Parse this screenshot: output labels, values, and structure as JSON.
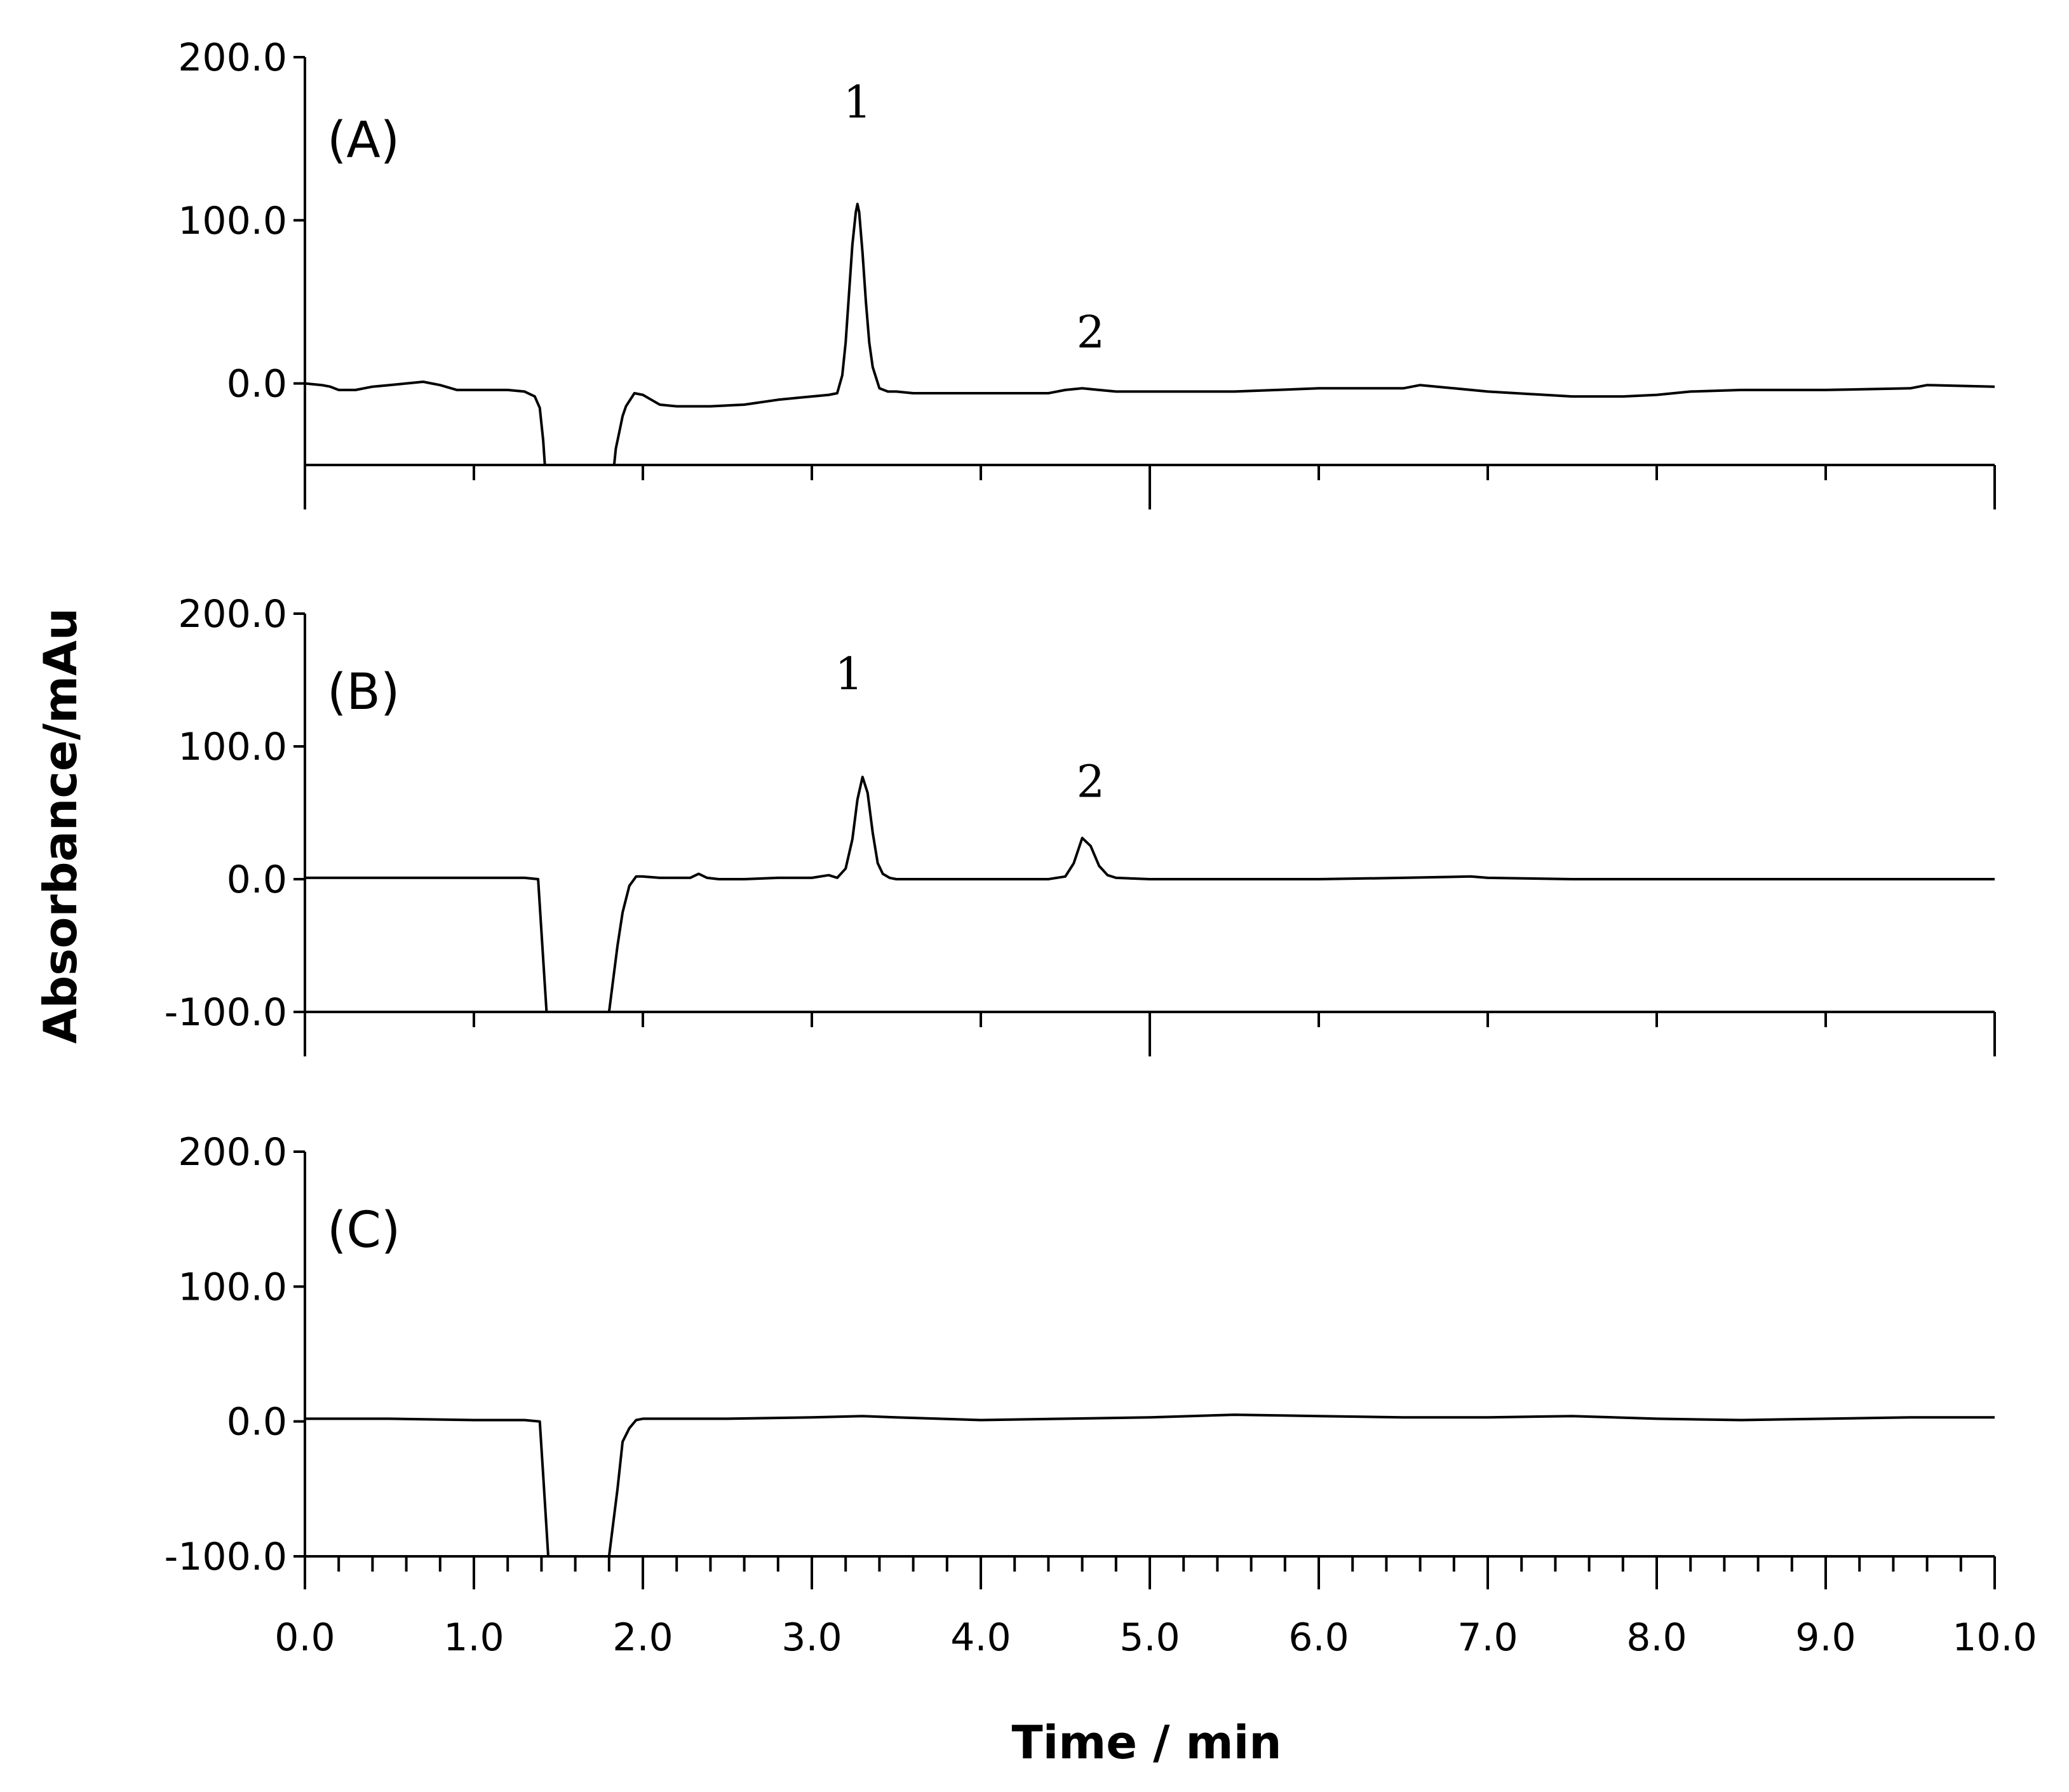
{
  "chart_data": {
    "type": "line",
    "xlabel": "Time / min",
    "ylabel": "Absorbance/mAu",
    "xlim": [
      0,
      10
    ],
    "x_ticks": [
      "0.0",
      "1.0",
      "2.0",
      "3.0",
      "4.0",
      "5.0",
      "6.0",
      "7.0",
      "8.0",
      "9.0",
      "10.0"
    ],
    "panels": [
      {
        "label": "(A)",
        "ylim": [
          -50,
          200
        ],
        "y_ticks": [
          "200.0",
          "100.0",
          "0.0"
        ],
        "y_tick_values": [
          200,
          100,
          0
        ],
        "annotations": [
          {
            "text": "1",
            "x": 3.27,
            "y": 163
          },
          {
            "text": "2",
            "x": 4.65,
            "y": 22
          }
        ],
        "x": [
          0,
          0.1,
          0.15,
          0.2,
          0.25,
          0.3,
          0.4,
          0.5,
          0.6,
          0.7,
          0.75,
          0.8,
          0.9,
          1.0,
          1.1,
          1.2,
          1.3,
          1.36,
          1.39,
          1.4,
          1.41,
          1.42,
          1.83,
          1.84,
          1.86,
          1.88,
          1.9,
          1.95,
          2.0,
          2.05,
          2.1,
          2.2,
          2.4,
          2.6,
          2.8,
          3.0,
          3.1,
          3.15,
          3.18,
          3.2,
          3.22,
          3.24,
          3.26,
          3.27,
          3.28,
          3.3,
          3.32,
          3.34,
          3.36,
          3.4,
          3.45,
          3.5,
          3.6,
          3.8,
          4.0,
          4.2,
          4.4,
          4.5,
          4.6,
          4.7,
          4.8,
          5.0,
          5.5,
          6.0,
          6.5,
          6.6,
          6.8,
          7.0,
          7.5,
          7.8,
          8.0,
          8.2,
          8.5,
          9.0,
          9.5,
          9.6,
          10.0
        ],
        "y": [
          0,
          -1,
          -2,
          -4,
          -4,
          -4,
          -2,
          -1,
          0,
          1,
          0,
          -1,
          -4,
          -4,
          -4,
          -4,
          -5,
          -8,
          -15,
          -25,
          -35,
          -50,
          -50,
          -40,
          -30,
          -20,
          -14,
          -6,
          -7,
          -10,
          -13,
          -14,
          -14,
          -13,
          -10,
          -8,
          -7,
          -6,
          5,
          25,
          55,
          85,
          105,
          110,
          105,
          80,
          50,
          25,
          10,
          -3,
          -5,
          -5,
          -6,
          -6,
          -6,
          -6,
          -6,
          -4,
          -3,
          -4,
          -5,
          -5,
          -5,
          -3,
          -3,
          -1,
          -3,
          -5,
          -8,
          -8,
          -7,
          -5,
          -4,
          -4,
          -3,
          -1,
          -2
        ]
      },
      {
        "label": "(B)",
        "ylim": [
          -100,
          200
        ],
        "y_ticks": [
          "200.0",
          "100.0",
          "0.0",
          "-100.0"
        ],
        "y_tick_values": [
          200,
          100,
          0,
          -100
        ],
        "annotations": [
          {
            "text": "1",
            "x": 3.22,
            "y": 143
          },
          {
            "text": "2",
            "x": 4.65,
            "y": 62
          }
        ],
        "x": [
          0,
          0.5,
          1.0,
          1.3,
          1.38,
          1.4,
          1.42,
          1.43,
          1.8,
          1.82,
          1.85,
          1.88,
          1.92,
          1.96,
          2.0,
          2.1,
          2.2,
          2.28,
          2.33,
          2.38,
          2.45,
          2.6,
          2.8,
          3.0,
          3.1,
          3.15,
          3.2,
          3.24,
          3.27,
          3.3,
          3.33,
          3.36,
          3.39,
          3.42,
          3.46,
          3.5,
          3.6,
          4.0,
          4.4,
          4.5,
          4.55,
          4.6,
          4.65,
          4.7,
          4.75,
          4.8,
          5.0,
          5.5,
          6.0,
          6.5,
          6.9,
          7.0,
          7.5,
          8.0,
          8.5,
          9.0,
          9.5,
          10.0
        ],
        "y": [
          1,
          1,
          1,
          1,
          0,
          -40,
          -80,
          -100,
          -100,
          -80,
          -50,
          -25,
          -5,
          2,
          2,
          1,
          1,
          1,
          4,
          1,
          0,
          0,
          1,
          1,
          3,
          1,
          8,
          30,
          60,
          77,
          65,
          35,
          12,
          4,
          1,
          0,
          0,
          0,
          0,
          2,
          12,
          31,
          25,
          10,
          3,
          1,
          0,
          0,
          0,
          1,
          2,
          1,
          0,
          0,
          0,
          0,
          0,
          0
        ]
      },
      {
        "label": "(C)",
        "ylim": [
          -100,
          200
        ],
        "y_ticks": [
          "200.0",
          "100.0",
          "0.0",
          "-100.0"
        ],
        "y_tick_values": [
          200,
          100,
          0,
          -100
        ],
        "annotations": [],
        "x": [
          0,
          0.5,
          1.0,
          1.3,
          1.39,
          1.41,
          1.43,
          1.44,
          1.8,
          1.82,
          1.85,
          1.88,
          1.92,
          1.96,
          2.0,
          2.5,
          3.0,
          3.3,
          3.5,
          4.0,
          4.5,
          5.0,
          5.5,
          6.0,
          6.5,
          7.0,
          7.5,
          8.0,
          8.5,
          9.0,
          9.5,
          10.0
        ],
        "y": [
          2,
          2,
          1,
          1,
          0,
          -40,
          -80,
          -100,
          -100,
          -80,
          -50,
          -15,
          -5,
          1,
          2,
          2,
          3,
          4,
          3,
          1,
          2,
          3,
          5,
          4,
          3,
          3,
          4,
          2,
          1,
          2,
          3,
          3
        ]
      }
    ]
  }
}
